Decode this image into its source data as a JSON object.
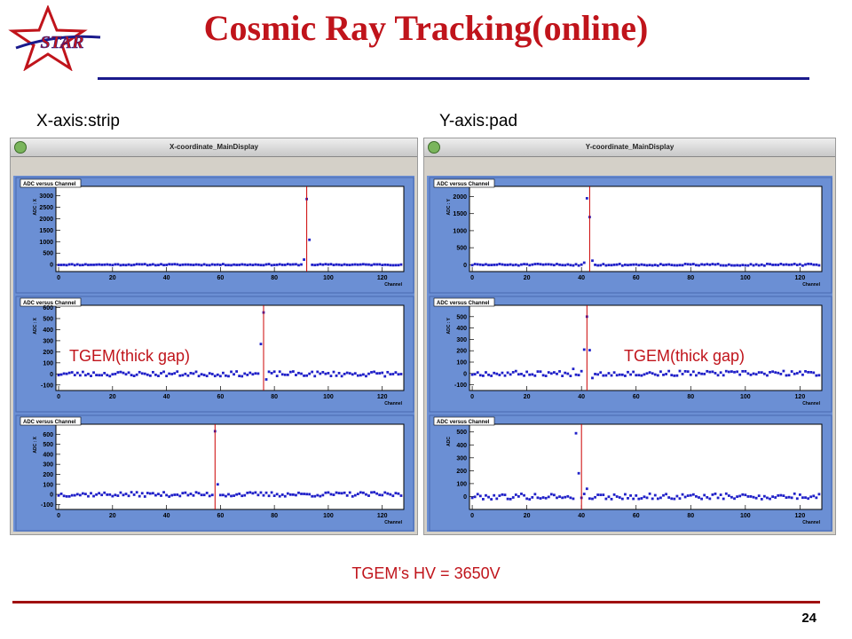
{
  "header": {
    "logo_text": "STAR",
    "title": "Cosmic Ray Tracking(online)"
  },
  "captions": {
    "x_axis": "X-axis:strip",
    "y_axis": "Y-axis:pad"
  },
  "windows": {
    "left_title": "X-coordinate_MainDisplay",
    "right_title": "Y-coordinate_MainDisplay"
  },
  "annotations": {
    "left_label": "TGEM(thick gap)",
    "right_label": "TGEM(thick gap)",
    "hv_label": "TGEM’s HV = 3650V",
    "page_number": "24"
  },
  "colors": {
    "title": "#c0141b",
    "rule_top": "#1a1a8c",
    "rule_bottom": "#a01010",
    "plot_background": "#6b8fd4",
    "marker": "#2020c8",
    "cursor_line": "#cc0000"
  },
  "chart_data": [
    {
      "type": "scatter",
      "panel": "left",
      "row": 0,
      "title": "ADC versus Channel",
      "xlabel": "Channel",
      "ylabel": "ADC : X",
      "xlim": [
        -1,
        128
      ],
      "ylim": [
        -300,
        3400
      ],
      "xticks": [
        0,
        20,
        40,
        60,
        80,
        100,
        120
      ],
      "yticks": [
        0,
        500,
        1000,
        1500,
        2000,
        2500,
        3000
      ],
      "vline": 92,
      "baseline": 0,
      "noise": 25,
      "seed": 11,
      "peaks": [
        {
          "x": 91,
          "y": 220
        },
        {
          "x": 92,
          "y": 2850
        },
        {
          "x": 93,
          "y": 1080
        }
      ]
    },
    {
      "type": "scatter",
      "panel": "left",
      "row": 1,
      "title": "ADC versus Channel",
      "xlabel": "Channel",
      "ylabel": "ADC : X",
      "xlim": [
        -1,
        128
      ],
      "ylim": [
        -150,
        620
      ],
      "xticks": [
        0,
        20,
        40,
        60,
        80,
        100,
        120
      ],
      "yticks": [
        -100,
        0,
        100,
        200,
        300,
        400,
        500,
        600
      ],
      "vline": 76,
      "baseline": 0,
      "noise": 22,
      "seed": 23,
      "peaks": [
        {
          "x": 75,
          "y": 270
        },
        {
          "x": 76,
          "y": 555
        },
        {
          "x": 77,
          "y": -50
        }
      ]
    },
    {
      "type": "scatter",
      "panel": "left",
      "row": 2,
      "title": "ADC versus Channel",
      "xlabel": "Channel",
      "ylabel": "ADC : X",
      "xlim": [
        -1,
        128
      ],
      "ylim": [
        -150,
        700
      ],
      "xticks": [
        0,
        20,
        40,
        60,
        80,
        100,
        120
      ],
      "yticks": [
        -100,
        0,
        100,
        200,
        300,
        400,
        500,
        600
      ],
      "vline": 58,
      "baseline": 0,
      "noise": 22,
      "seed": 37,
      "peaks": [
        {
          "x": 58,
          "y": 630
        },
        {
          "x": 59,
          "y": 100
        }
      ]
    },
    {
      "type": "scatter",
      "panel": "right",
      "row": 0,
      "title": "ADC versus Channel",
      "xlabel": "Channel",
      "ylabel": "ADC : Y",
      "xlim": [
        -1,
        128
      ],
      "ylim": [
        -200,
        2300
      ],
      "xticks": [
        0,
        20,
        40,
        60,
        80,
        100,
        120
      ],
      "yticks": [
        0,
        500,
        1000,
        1500,
        2000
      ],
      "vline": 43,
      "baseline": 0,
      "noise": 25,
      "seed": 51,
      "peaks": [
        {
          "x": 41,
          "y": 60
        },
        {
          "x": 42,
          "y": 1950
        },
        {
          "x": 43,
          "y": 1400
        },
        {
          "x": 44,
          "y": 120
        }
      ]
    },
    {
      "type": "scatter",
      "panel": "right",
      "row": 1,
      "title": "ADC versus Channel",
      "xlabel": "Channel",
      "ylabel": "ADC : Y",
      "xlim": [
        -1,
        128
      ],
      "ylim": [
        -150,
        600
      ],
      "xticks": [
        0,
        20,
        40,
        60,
        80,
        100,
        120
      ],
      "yticks": [
        -100,
        0,
        100,
        200,
        300,
        400,
        500
      ],
      "vline": 42,
      "baseline": 0,
      "noise": 22,
      "seed": 67,
      "peaks": [
        {
          "x": 37,
          "y": 40
        },
        {
          "x": 40,
          "y": 20
        },
        {
          "x": 41,
          "y": 210
        },
        {
          "x": 42,
          "y": 500
        },
        {
          "x": 43,
          "y": 205
        },
        {
          "x": 44,
          "y": -40
        }
      ]
    },
    {
      "type": "scatter",
      "panel": "right",
      "row": 2,
      "title": "ADC versus Channel",
      "xlabel": "Channel",
      "ylabel": "ADC",
      "xlim": [
        -1,
        128
      ],
      "ylim": [
        -100,
        560
      ],
      "xticks": [
        0,
        20,
        40,
        60,
        80,
        100,
        120
      ],
      "yticks": [
        0,
        100,
        200,
        300,
        400,
        500
      ],
      "vline": 40,
      "baseline": 0,
      "noise": 22,
      "seed": 79,
      "peaks": [
        {
          "x": 38,
          "y": 490
        },
        {
          "x": 39,
          "y": 180
        },
        {
          "x": 40,
          "y": -10
        },
        {
          "x": 42,
          "y": 60
        }
      ]
    }
  ]
}
